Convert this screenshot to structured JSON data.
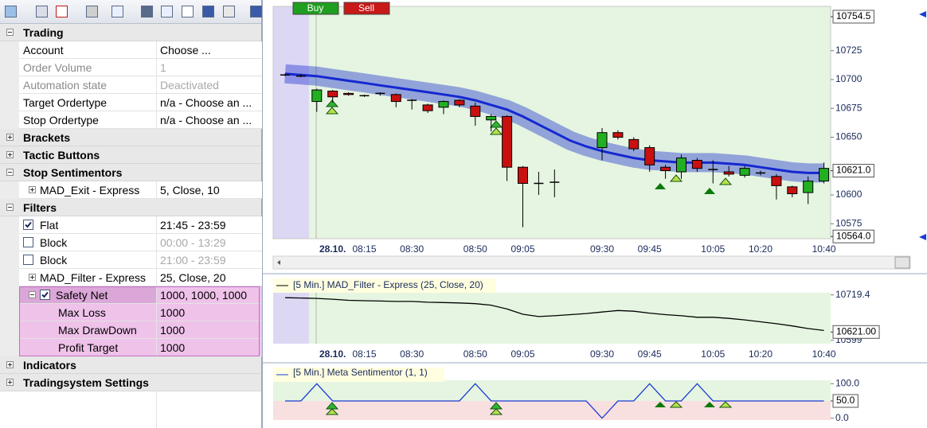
{
  "property_grid": {
    "rows": [
      {
        "label": "Trading",
        "kind": "category",
        "expanded": true
      },
      {
        "label": "Account",
        "value": "Choose ..."
      },
      {
        "label": "Order Volume",
        "value": "1",
        "disabled": true
      },
      {
        "label": "Automation state",
        "value": "Deactivated",
        "disabled": true
      },
      {
        "label": "Target Ordertype",
        "value": "n/a - Choose an ..."
      },
      {
        "label": "Stop Ordertype",
        "value": "n/a - Choose an ..."
      },
      {
        "label": "Brackets",
        "kind": "category",
        "expanded": false
      },
      {
        "label": "Tactic Buttons",
        "kind": "category",
        "expanded": false
      },
      {
        "label": "Stop Sentimentors",
        "kind": "category",
        "expanded": true
      },
      {
        "label": "MAD_Exit - Express",
        "value": "5, Close, 10",
        "expanded": false
      },
      {
        "label": "Filters",
        "kind": "category",
        "expanded": true
      },
      {
        "label": "Flat",
        "value": "21:45 - 23:59",
        "checked": true
      },
      {
        "label": "Block",
        "value": "00:00 - 13:29",
        "checked": false,
        "value_disabled": true
      },
      {
        "label": "Block",
        "value": "21:00 - 23:59",
        "checked": false,
        "value_disabled": true
      },
      {
        "label": "MAD_Filter - Express",
        "value": "25, Close, 20",
        "expanded": false
      },
      {
        "label": "Safety Net",
        "value": "1000, 1000, 1000",
        "expanded": true,
        "checked": true,
        "highlighted": true
      },
      {
        "label": "Max Loss",
        "value": "1000",
        "highlighted": true,
        "child": true
      },
      {
        "label": "Max DrawDown",
        "value": "1000",
        "highlighted": true,
        "child": true
      },
      {
        "label": "Profit Target",
        "value": "1000",
        "highlighted": true,
        "child": true
      },
      {
        "label": "Indicators",
        "kind": "category",
        "expanded": false
      },
      {
        "label": "Tradingsystem Settings",
        "kind": "category",
        "expanded": false
      }
    ]
  },
  "chart_data": [
    {
      "type": "candlestick",
      "buttons": [
        {
          "label": "Buy",
          "color": "#1f9e1f"
        },
        {
          "label": "Sell",
          "color": "#c81818"
        }
      ],
      "categories": [
        null,
        null,
        null,
        "28.10.",
        null,
        "08:15",
        null,
        null,
        "08:30",
        null,
        null,
        null,
        "08:50",
        null,
        null,
        "09:05",
        null,
        null,
        null,
        null,
        "09:30",
        null,
        null,
        "09:45",
        null,
        null,
        null,
        "10:05",
        null,
        null,
        "10:20",
        null,
        null,
        null,
        "10:40"
      ],
      "open": [
        10704,
        10703,
        10681,
        10690,
        10688,
        10686,
        10688,
        10687,
        10682,
        10678,
        10676,
        10682,
        10677,
        10665,
        10668,
        10624,
        10610,
        10611,
        null,
        null,
        10641,
        10654,
        10648,
        10641,
        10624,
        10620,
        10630,
        10622,
        10620,
        10617,
        10619,
        10616,
        10607,
        10602,
        10612
      ],
      "high": [
        10705,
        10705,
        10692,
        10691,
        10689,
        10687,
        10689,
        10688,
        10683,
        10679,
        10682,
        10683,
        10680,
        10670,
        10669,
        10625,
        10620,
        10622,
        null,
        null,
        10658,
        10656,
        10650,
        10643,
        10626,
        10635,
        10632,
        10630,
        10625,
        10625,
        10621,
        10618,
        10608,
        10616,
        10628
      ],
      "low": [
        10703,
        10702,
        10672,
        10680,
        10686,
        10685,
        10686,
        10676,
        10674,
        10671,
        10670,
        10676,
        10660,
        10655,
        10612,
        10572,
        10600,
        10598,
        null,
        null,
        10630,
        10648,
        10638,
        10620,
        10614,
        10614,
        10620,
        10610,
        10616,
        10615,
        10617,
        10596,
        10598,
        10592,
        10610
      ],
      "close": [
        10704,
        10703,
        10691,
        10685,
        10687,
        10686,
        10688,
        10681,
        10682,
        10673,
        10681,
        10678,
        10668,
        10668,
        10624,
        10610,
        10610,
        10611,
        null,
        null,
        10654,
        10650,
        10640,
        10626,
        10621,
        10632,
        10623,
        10622,
        10618,
        10623,
        10619,
        10608,
        10601,
        10612,
        10623
      ],
      "up_color": "#22b022",
      "down_color": "#c81010",
      "band": {
        "color": "#1428d0",
        "values": [
          10705,
          10704,
          10703,
          10701,
          10699,
          10697,
          10695,
          10693,
          10691,
          10689,
          10687,
          10685,
          10682,
          10678,
          10674,
          10668,
          10661,
          10654,
          10647,
          10642,
          10638,
          10635,
          10632,
          10630,
          10629,
          10628,
          10628,
          10628,
          10627,
          10626,
          10624,
          10622,
          10620,
          10619,
          10619
        ]
      },
      "ylim": [
        10560,
        10760
      ],
      "yticks": [
        10575,
        10600,
        10650,
        10675,
        10700,
        10725
      ],
      "price_markers": [
        10754.5,
        {
          "value": 10621,
          "label": "10621.0"
        },
        {
          "value": 10564,
          "label": "10564.0"
        }
      ]
    },
    {
      "type": "line",
      "title": "[5 Min.] MAD_Filter - Express  (25, Close, 20)",
      "color": "#000000",
      "values": [
        10712,
        10711,
        10710,
        10708,
        10705,
        10704,
        10703,
        10702,
        10702,
        10700,
        10699,
        10698,
        10696,
        10692,
        10682,
        10668,
        10662,
        10664,
        10667,
        10670,
        10674,
        10678,
        10676,
        10671,
        10667,
        10664,
        10660,
        10660,
        10657,
        10653,
        10648,
        10643,
        10637,
        10630,
        10625
      ],
      "ylim": [
        10590,
        10725
      ],
      "yticks": [
        10599,
        10719.4
      ],
      "price_markers": [
        {
          "value": 10621,
          "label": "10621.00"
        }
      ]
    },
    {
      "type": "line",
      "title": "[5 Min.] Meta Sentimentor  (1, 1)",
      "color": "#1a3bd6",
      "values": [
        50,
        50,
        100,
        50,
        50,
        50,
        50,
        50,
        50,
        50,
        50,
        50,
        100,
        50,
        50,
        50,
        50,
        50,
        50,
        50,
        0,
        50,
        50,
        100,
        50,
        50,
        100,
        50,
        50,
        50,
        50,
        50,
        50,
        50,
        50
      ],
      "ylim": [
        -10,
        110
      ],
      "yticks": [
        {
          "value": 100,
          "label": "100.0"
        },
        {
          "value": 0,
          "label": "0.0"
        }
      ],
      "price_markers": [
        {
          "value": 50,
          "label": "50.0"
        }
      ]
    }
  ]
}
